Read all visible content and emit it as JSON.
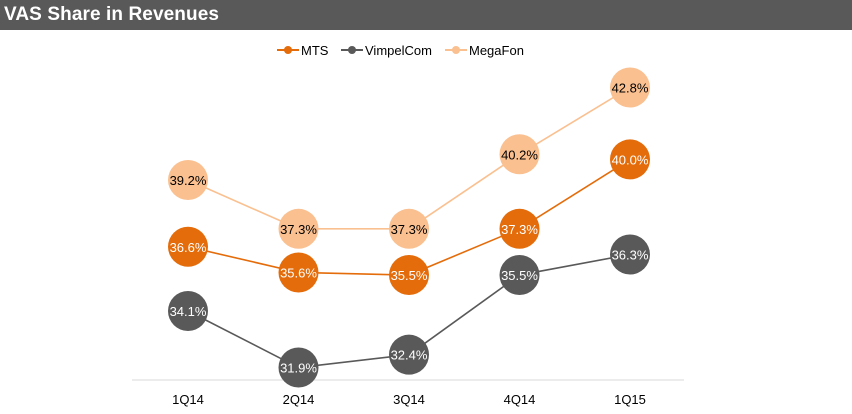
{
  "header": {
    "title": "VAS Share in Revenues",
    "background_color": "#595959"
  },
  "chart_data": {
    "type": "line",
    "title": "VAS Share in Revenues",
    "xlabel": "",
    "ylabel": "",
    "categories": [
      "1Q14",
      "2Q14",
      "3Q14",
      "4Q14",
      "1Q15"
    ],
    "series": [
      {
        "name": "MTS",
        "values": [
          36.6,
          35.6,
          35.5,
          37.3,
          40.0
        ],
        "labels": [
          "36.6%",
          "35.6%",
          "35.5%",
          "37.3%",
          "40.0%"
        ],
        "color": "#E46C0A",
        "label_color": "#ffffff"
      },
      {
        "name": "VimpelCom",
        "values": [
          34.1,
          31.9,
          32.4,
          35.5,
          36.3
        ],
        "labels": [
          "34.1%",
          "31.9%",
          "32.4%",
          "35.5%",
          "36.3%"
        ],
        "color": "#595959",
        "label_color": "#ffffff"
      },
      {
        "name": "MegaFon",
        "values": [
          39.2,
          37.3,
          37.3,
          40.2,
          42.8
        ],
        "labels": [
          "39.2%",
          "37.3%",
          "37.3%",
          "40.2%",
          "42.8%"
        ],
        "color": "#FAC090",
        "label_color": "#000000"
      }
    ],
    "ylim": [
      30.5,
      43.5
    ],
    "legend": "top-center",
    "grid": false,
    "y_axis_visible": false,
    "data_labels": true
  }
}
